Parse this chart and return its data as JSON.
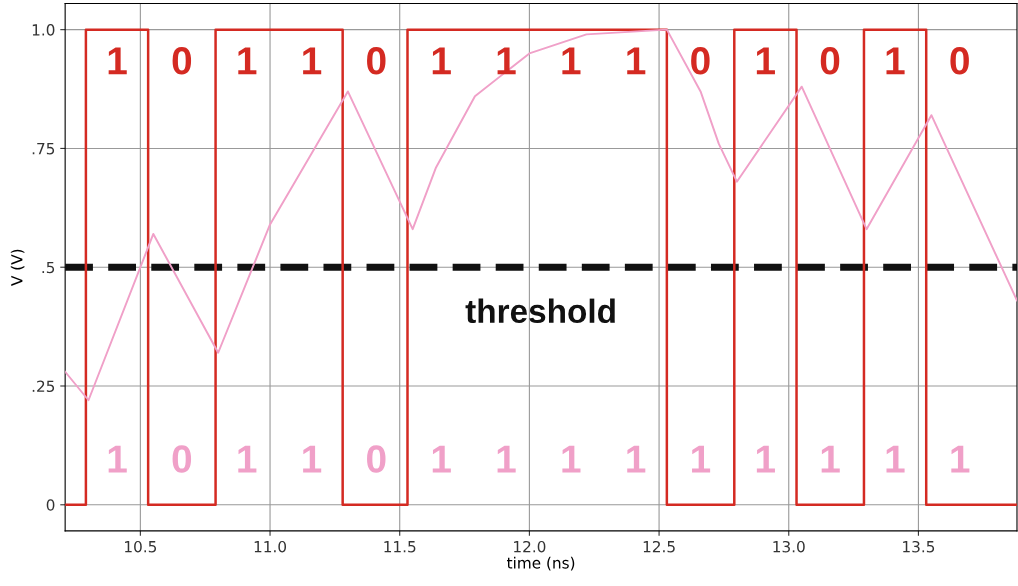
{
  "chart_data": {
    "type": "line",
    "xlabel": "time (ns)",
    "ylabel": "V (V)",
    "xlim": [
      10.21,
      13.88
    ],
    "ylim": [
      -0.055,
      1.055
    ],
    "xticks": [
      10.5,
      {
        "value": 11,
        "label": "11.0"
      },
      11.5,
      {
        "value": 12,
        "label": "12.0"
      },
      12.5,
      {
        "value": 13,
        "label": "13.0"
      },
      13.5
    ],
    "yticks": [
      0,
      {
        "value": 0.25,
        "label": ".25"
      },
      {
        "value": 0.5,
        "label": ".5"
      },
      {
        "value": 0.75,
        "label": ".75"
      },
      {
        "value": 1,
        "label": "1.0"
      }
    ],
    "grid": true,
    "marker": "none",
    "line_style": "solid",
    "series": [
      {
        "color": "#d42a22",
        "x": [
          10.21,
          10.29,
          10.29,
          10.53,
          10.53,
          10.79,
          10.79,
          11.28,
          11.28,
          11.53,
          11.53,
          12.53,
          12.53,
          12.79,
          12.79,
          13.03,
          13.03,
          13.29,
          13.29,
          13.53,
          13.53,
          13.88
        ],
        "values": [
          0,
          0,
          1,
          1,
          0,
          0,
          1,
          1,
          0,
          0,
          1,
          1,
          0,
          0,
          1,
          1,
          0,
          0,
          1,
          1,
          0,
          0
        ]
      },
      {
        "color": "#f0a0c8",
        "x": [
          10.21,
          10.3,
          10.55,
          10.8,
          11.0,
          11.3,
          11.55,
          11.64,
          11.79,
          12.0,
          12.22,
          12.53,
          12.66,
          12.73,
          12.8,
          13.05,
          13.3,
          13.55,
          13.88
        ],
        "values": [
          0.28,
          0.22,
          0.57,
          0.32,
          0.59,
          0.87,
          0.58,
          0.71,
          0.86,
          0.95,
          0.99,
          1.0,
          0.87,
          0.76,
          0.68,
          0.88,
          0.58,
          0.82,
          0.43
        ]
      }
    ],
    "ref_lines": [
      {
        "axis": "y",
        "value": 0.5,
        "label": "threshold",
        "color": "#111111",
        "line_style": "dashed"
      }
    ],
    "annotations": [
      "1",
      "0",
      "1",
      "1",
      "0",
      "1",
      "1",
      "1",
      "1",
      "0",
      "1",
      "0",
      "1",
      "0",
      "1",
      "0",
      "1",
      "1",
      "0",
      "1",
      "1",
      "1",
      "1",
      "1",
      "1",
      "1",
      "1",
      "1"
    ]
  }
}
